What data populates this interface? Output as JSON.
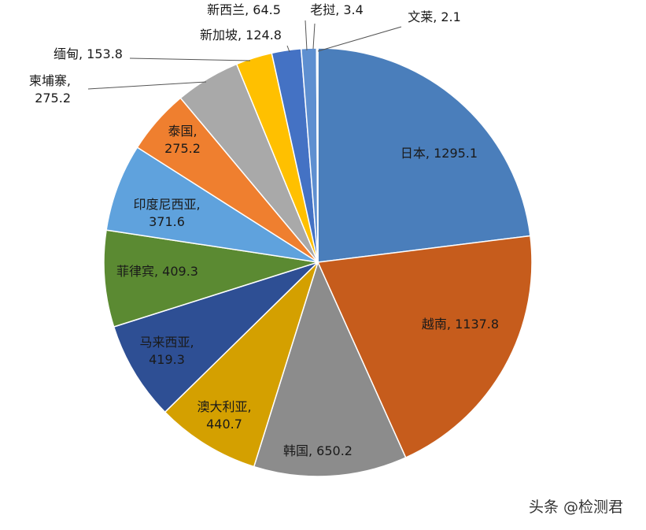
{
  "chart_data": {
    "type": "pie",
    "title": "",
    "slices": [
      {
        "label": "日本",
        "value": 1295.1,
        "text": "日本, 1295.1",
        "color": "#4a7ebb"
      },
      {
        "label": "越南",
        "value": 1137.8,
        "text": "越南, 1137.8",
        "color": "#c65c1c"
      },
      {
        "label": "韩国",
        "value": 650.2,
        "text": "韩国, 650.2",
        "color": "#8c8c8c"
      },
      {
        "label": "澳大利亚",
        "value": 440.7,
        "text": "澳大利亚, 440.7",
        "color": "#d4a000"
      },
      {
        "label": "马来西亚",
        "value": 419.3,
        "text": "马来西亚, 419.3",
        "color": "#2e4f94"
      },
      {
        "label": "菲律宾",
        "value": 409.3,
        "text": "菲律宾, 409.3",
        "color": "#5b8a32"
      },
      {
        "label": "印度尼西亚",
        "value": 371.6,
        "text": "印度尼西亚, 371.6",
        "color": "#5fa2dd"
      },
      {
        "label": "泰国",
        "value": 275.2,
        "text": "泰国, 275.2",
        "color": "#ef7f2f"
      },
      {
        "label": "柬埔寨",
        "value": 275.2,
        "text": "柬埔寨, 275.2",
        "color": "#a9a9a9"
      },
      {
        "label": "缅甸",
        "value": 153.8,
        "text": "缅甸, 153.8",
        "color": "#ffc000"
      },
      {
        "label": "新加坡",
        "value": 124.8,
        "text": "新加坡, 124.8",
        "color": "#4472c4"
      },
      {
        "label": "新西兰",
        "value": 64.5,
        "text": "新西兰, 64.5",
        "color": "#5e8fd0"
      },
      {
        "label": "老挝",
        "value": 3.4,
        "text": "老挝, 3.4",
        "color": "#2f5597"
      },
      {
        "label": "文莱",
        "value": 2.1,
        "text": "文莱, 2.1",
        "color": "#70ad47"
      }
    ]
  },
  "watermark": "头条 @检测君"
}
